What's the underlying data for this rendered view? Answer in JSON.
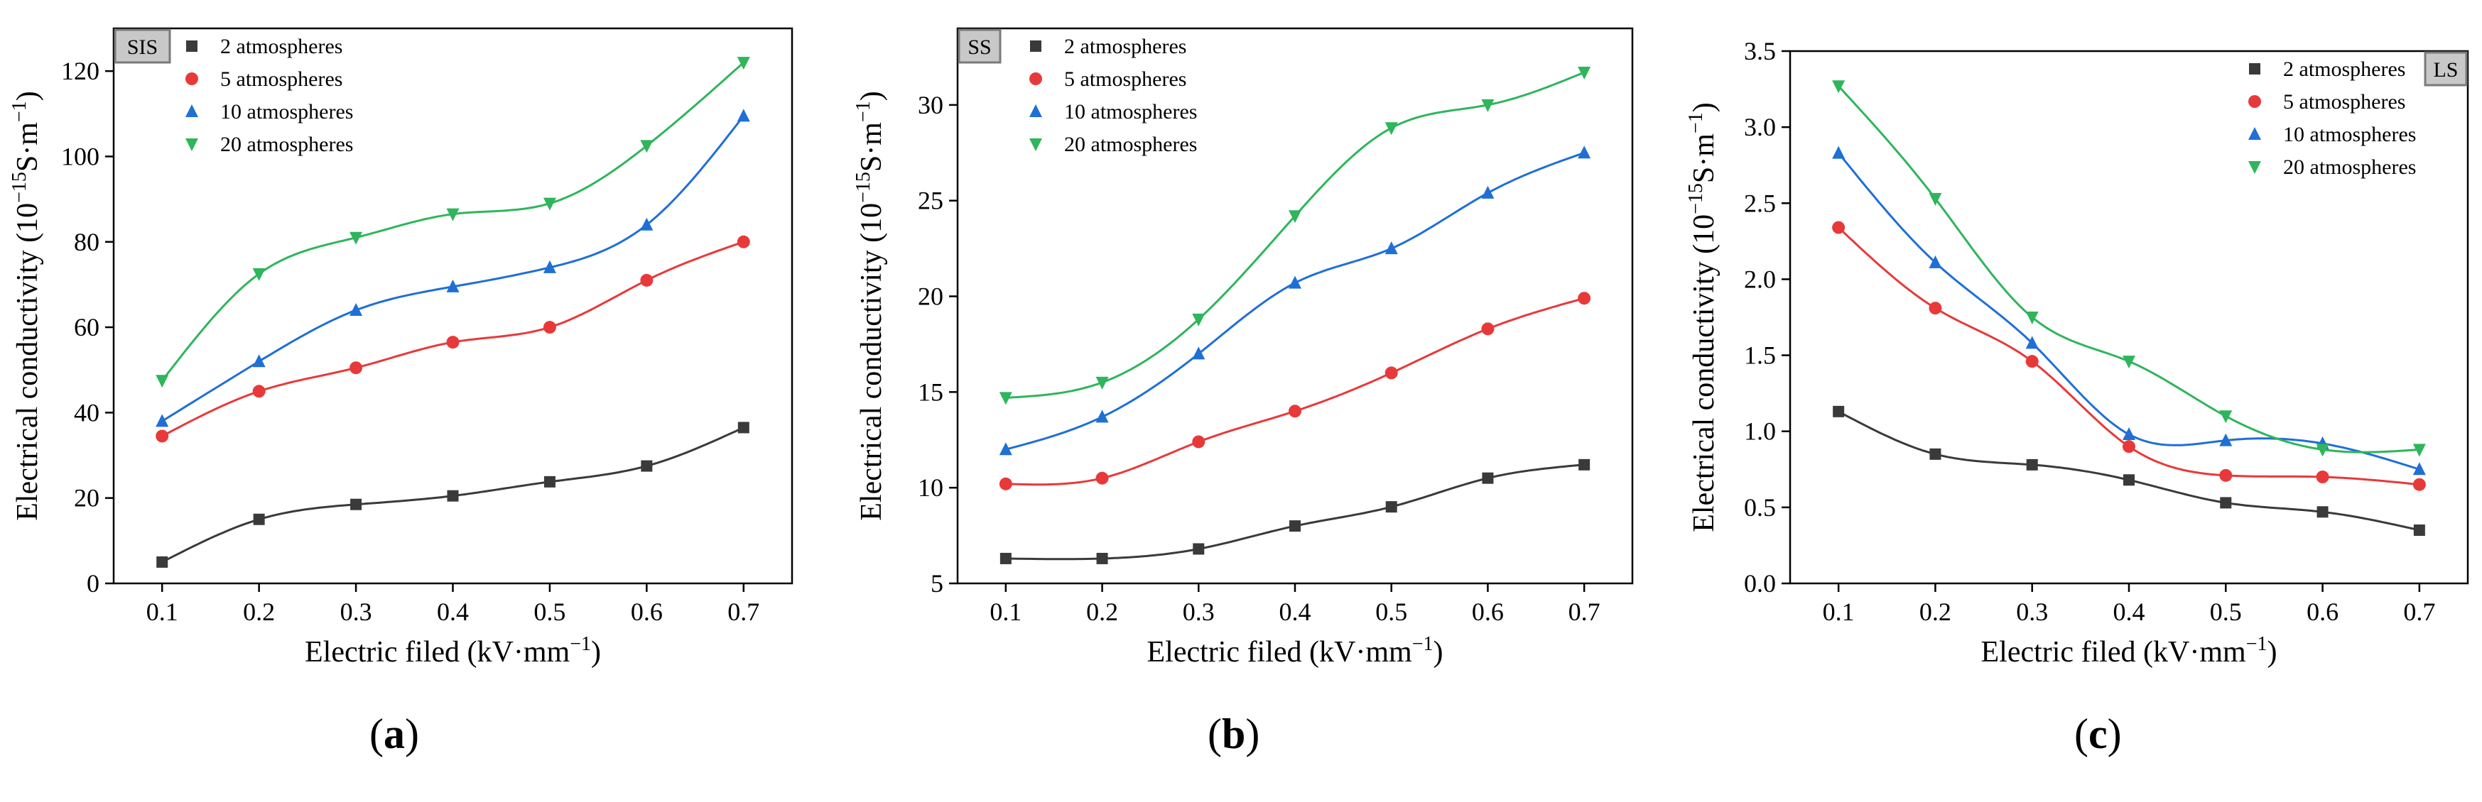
{
  "colors": {
    "2 atmospheres": "#3a3a3a",
    "5 atmospheres": "#e8393a",
    "10 atmospheres": "#1f6fd6",
    "20 atmospheres": "#2fb55b"
  },
  "chart_data": [
    {
      "type": "scatter",
      "tag": "SIS",
      "caption": "a",
      "xlabel": "Electric filed (kV·mm",
      "xlabel_sup": "−1",
      "xlabel_end": ")",
      "ylabel": "Electrical conductivity (10",
      "ylabel_sup": "−15",
      "ylabel_mid": "S·m",
      "ylabel_sup2": "−1",
      "ylabel_end": ")",
      "x": [
        0.1,
        0.2,
        0.3,
        0.4,
        0.5,
        0.6,
        0.7
      ],
      "xticks": [
        "0.1",
        "0.2",
        "0.3",
        "0.4",
        "0.5",
        "0.6",
        "0.7"
      ],
      "xlim": [
        0.05,
        0.75
      ],
      "ylim": [
        0,
        130
      ],
      "yticks": [
        0,
        20,
        40,
        60,
        80,
        100,
        120
      ],
      "legend_placement": "top-left",
      "series": [
        {
          "name": "2 atmospheres",
          "marker": "square",
          "values": [
            5,
            15,
            18.5,
            20.5,
            23.8,
            27.5,
            36.5
          ]
        },
        {
          "name": "5 atmospheres",
          "marker": "circle",
          "values": [
            34.5,
            45,
            50.5,
            56.5,
            60,
            71,
            80
          ]
        },
        {
          "name": "10 atmospheres",
          "marker": "triangle-up",
          "values": [
            38,
            52,
            64,
            69.5,
            74,
            84,
            109.5
          ]
        },
        {
          "name": "20 atmospheres",
          "marker": "triangle-down",
          "values": [
            47.5,
            72.5,
            81,
            86.5,
            89,
            102.5,
            122
          ]
        }
      ]
    },
    {
      "type": "scatter",
      "tag": "SS",
      "caption": "b",
      "xlabel": "Electric filed (kV·mm",
      "xlabel_sup": "−1",
      "xlabel_end": ")",
      "ylabel": "Electrical conductivity (10",
      "ylabel_sup": "−15",
      "ylabel_mid": "S·m",
      "ylabel_sup2": "−1",
      "ylabel_end": ")",
      "x": [
        0.1,
        0.2,
        0.3,
        0.4,
        0.5,
        0.6,
        0.7
      ],
      "xticks": [
        "0.1",
        "0.2",
        "0.3",
        "0.4",
        "0.5",
        "0.6",
        "0.7"
      ],
      "xlim": [
        0.05,
        0.75
      ],
      "ylim": [
        5,
        34
      ],
      "yticks": [
        5,
        10,
        15,
        20,
        25,
        30
      ],
      "legend_placement": "top-left",
      "series": [
        {
          "name": "2 atmospheres",
          "marker": "square",
          "values": [
            6.3,
            6.3,
            6.8,
            8,
            9,
            10.5,
            11.2
          ]
        },
        {
          "name": "5 atmospheres",
          "marker": "circle",
          "values": [
            10.2,
            10.5,
            12.4,
            14,
            16,
            18.3,
            19.9
          ]
        },
        {
          "name": "10 atmospheres",
          "marker": "triangle-up",
          "values": [
            12,
            13.7,
            17,
            20.7,
            22.5,
            25.4,
            27.5
          ]
        },
        {
          "name": "20 atmospheres",
          "marker": "triangle-down",
          "values": [
            14.7,
            15.5,
            18.8,
            24.2,
            28.8,
            30,
            31.7
          ]
        }
      ]
    },
    {
      "type": "scatter",
      "tag": "LS",
      "caption": "c",
      "xlabel": "Electric filed (kV·mm",
      "xlabel_sup": "−1",
      "xlabel_end": ")",
      "ylabel": "Electrical conductivity (10",
      "ylabel_sup": "−15",
      "ylabel_mid": "S·m",
      "ylabel_sup2": "−1",
      "ylabel_end": ")",
      "x": [
        0.1,
        0.2,
        0.3,
        0.4,
        0.5,
        0.6,
        0.7
      ],
      "xticks": [
        "0.1",
        "0.2",
        "0.3",
        "0.4",
        "0.5",
        "0.6",
        "0.7"
      ],
      "xlim": [
        0.05,
        0.75
      ],
      "ylim": [
        0,
        3.5
      ],
      "yticks": [
        "0.0",
        "0.5",
        "1.0",
        "1.5",
        "2.0",
        "2.5",
        "3.0",
        "3.5"
      ],
      "legend_placement": "top-right",
      "series": [
        {
          "name": "2 atmospheres",
          "marker": "square",
          "values": [
            1.13,
            0.85,
            0.78,
            0.68,
            0.53,
            0.47,
            0.35
          ]
        },
        {
          "name": "5 atmospheres",
          "marker": "circle",
          "values": [
            2.34,
            1.81,
            1.46,
            0.9,
            0.71,
            0.7,
            0.65
          ]
        },
        {
          "name": "10 atmospheres",
          "marker": "triangle-up",
          "values": [
            2.83,
            2.11,
            1.58,
            0.98,
            0.94,
            0.92,
            0.75
          ]
        },
        {
          "name": "20 atmospheres",
          "marker": "triangle-down",
          "values": [
            3.27,
            2.53,
            1.75,
            1.46,
            1.1,
            0.88,
            0.88
          ]
        }
      ]
    }
  ]
}
